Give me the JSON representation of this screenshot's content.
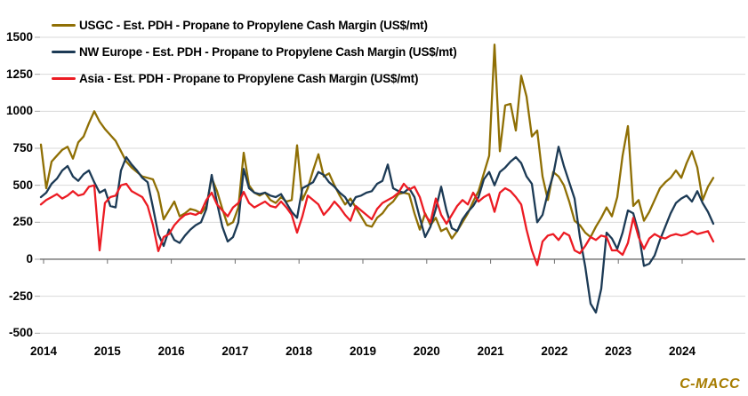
{
  "watermark": {
    "label": "C-MACC",
    "color": "#A67C00"
  },
  "chart_data": {
    "type": "line",
    "title": "",
    "xlabel": "",
    "ylabel": "",
    "x_start": "2014-01",
    "x_frequency": "monthly",
    "legend_position": "top-left",
    "x_axis": {
      "tick_labels": [
        "2014",
        "2015",
        "2016",
        "2017",
        "2018",
        "2019",
        "2020",
        "2021",
        "2022",
        "2023",
        "2024"
      ]
    },
    "y_axis": {
      "tick_values": [
        1500,
        1250,
        1000,
        750,
        500,
        250,
        0,
        -250,
        -500
      ],
      "tick_labels": [
        "1500",
        "1250",
        "1000",
        "750",
        "500",
        "250",
        "0",
        "-250",
        "-500"
      ],
      "ylim": [
        -500,
        1500
      ],
      "grid": true
    },
    "series": [
      {
        "id": "usgc",
        "name": "USGC - Est. PDH - Propane to Propylene Cash Margin (US$/mt)",
        "color": "#8F6F04",
        "values": [
          775,
          480,
          660,
          700,
          740,
          760,
          680,
          790,
          830,
          920,
          1000,
          930,
          880,
          840,
          800,
          730,
          660,
          620,
          590,
          560,
          550,
          540,
          450,
          270,
          330,
          390,
          290,
          310,
          340,
          330,
          310,
          360,
          550,
          460,
          340,
          230,
          250,
          350,
          720,
          500,
          450,
          430,
          450,
          400,
          380,
          420,
          390,
          400,
          770,
          400,
          480,
          600,
          710,
          560,
          580,
          500,
          430,
          370,
          410,
          350,
          290,
          230,
          220,
          280,
          310,
          360,
          390,
          440,
          450,
          440,
          310,
          200,
          310,
          230,
          280,
          190,
          210,
          140,
          190,
          250,
          310,
          390,
          460,
          580,
          700,
          1450,
          730,
          1040,
          1050,
          870,
          1240,
          1100,
          830,
          870,
          560,
          400,
          590,
          560,
          500,
          390,
          260,
          230,
          180,
          150,
          220,
          280,
          350,
          290,
          420,
          700,
          900,
          360,
          400,
          260,
          320,
          400,
          480,
          520,
          550,
          600,
          550,
          650,
          730,
          620,
          400,
          490,
          550
        ]
      },
      {
        "id": "nw-europe",
        "name": "NW Europe - Est. PDH - Propane to Propylene Cash Margin (US$/mt)",
        "color": "#1C3A55",
        "values": [
          420,
          450,
          510,
          545,
          600,
          630,
          560,
          530,
          575,
          600,
          520,
          450,
          470,
          360,
          350,
          600,
          690,
          640,
          600,
          550,
          520,
          350,
          170,
          90,
          200,
          130,
          110,
          160,
          200,
          230,
          250,
          340,
          570,
          380,
          220,
          120,
          150,
          250,
          610,
          480,
          450,
          440,
          450,
          430,
          420,
          440,
          380,
          320,
          280,
          480,
          500,
          520,
          590,
          570,
          520,
          490,
          450,
          420,
          360,
          420,
          430,
          450,
          460,
          510,
          530,
          640,
          480,
          460,
          450,
          480,
          420,
          280,
          150,
          220,
          340,
          490,
          330,
          210,
          190,
          270,
          320,
          360,
          420,
          540,
          590,
          500,
          590,
          620,
          660,
          690,
          650,
          560,
          510,
          250,
          300,
          450,
          570,
          760,
          630,
          520,
          410,
          150,
          -50,
          -300,
          -360,
          -200,
          180,
          140,
          70,
          180,
          330,
          310,
          180,
          -45,
          -30,
          25,
          130,
          220,
          310,
          380,
          410,
          430,
          390,
          460,
          380,
          320,
          240
        ]
      },
      {
        "id": "asia",
        "name": "Asia - Est. PDH - Propane to Propylene Cash Margin (US$/mt)",
        "color": "#EC1B23",
        "values": [
          370,
          400,
          420,
          440,
          410,
          430,
          460,
          430,
          440,
          490,
          500,
          60,
          380,
          420,
          430,
          500,
          510,
          460,
          440,
          420,
          360,
          230,
          55,
          150,
          170,
          230,
          270,
          300,
          310,
          300,
          320,
          400,
          450,
          370,
          330,
          290,
          350,
          380,
          455,
          380,
          350,
          370,
          390,
          360,
          350,
          390,
          350,
          300,
          180,
          290,
          430,
          400,
          370,
          300,
          340,
          390,
          350,
          300,
          260,
          360,
          330,
          300,
          270,
          340,
          380,
          400,
          420,
          450,
          510,
          470,
          490,
          420,
          300,
          250,
          410,
          300,
          240,
          300,
          360,
          400,
          370,
          450,
          390,
          420,
          440,
          320,
          450,
          480,
          460,
          420,
          370,
          200,
          60,
          -40,
          120,
          160,
          170,
          130,
          180,
          160,
          60,
          40,
          90,
          150,
          130,
          160,
          150,
          60,
          60,
          30,
          110,
          280,
          150,
          70,
          140,
          170,
          150,
          140,
          160,
          170,
          160,
          170,
          190,
          170,
          180,
          190,
          120
        ]
      }
    ]
  }
}
